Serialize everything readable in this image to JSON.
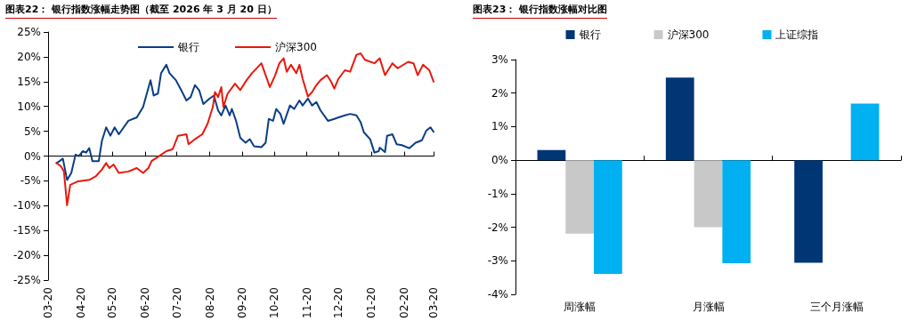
{
  "chart_data": [
    {
      "type": "line",
      "title": "图表22：  银行指数涨幅走势图（截至 2026 年 3 月 20 日）",
      "legend": "top",
      "marker": "none",
      "line_style": "solid",
      "xlim": [
        "2025-03-20",
        "2026-03-20"
      ],
      "xticks": [
        {
          "value": "2025-03-20",
          "label": "03-20"
        },
        {
          "value": "2025-04-20",
          "label": "04-20"
        },
        {
          "value": "2025-05-20",
          "label": "05-20"
        },
        {
          "value": "2025-06-20",
          "label": "06-20"
        },
        {
          "value": "2025-07-20",
          "label": "07-20"
        },
        {
          "value": "2025-08-20",
          "label": "08-20"
        },
        {
          "value": "2025-09-20",
          "label": "09-20"
        },
        {
          "value": "2025-10-20",
          "label": "10-20"
        },
        {
          "value": "2025-11-20",
          "label": "11-20"
        },
        {
          "value": "2025-12-20",
          "label": "12-20"
        },
        {
          "value": "2026-01-20",
          "label": "01-20"
        },
        {
          "value": "2026-02-20",
          "label": "02-20"
        },
        {
          "value": "2026-03-20",
          "label": "03-20"
        }
      ],
      "ylim": [
        -25,
        25
      ],
      "yticks": [
        {
          "value": -25,
          "label": "-25%"
        },
        {
          "value": -20,
          "label": "-20%"
        },
        {
          "value": -15,
          "label": "-15%"
        },
        {
          "value": -10,
          "label": "-10%"
        },
        {
          "value": -5,
          "label": "-5%"
        },
        {
          "value": 0,
          "label": "0%"
        },
        {
          "value": 5,
          "label": "5%"
        },
        {
          "value": 10,
          "label": "10%"
        },
        {
          "value": 15,
          "label": "15%"
        },
        {
          "value": 20,
          "label": "20%"
        },
        {
          "value": 25,
          "label": "25%"
        }
      ],
      "series": [
        {
          "name": "银行",
          "color": "#0a3d85",
          "x": [
            "2025-03-28",
            "2025-03-31",
            "2025-04-03",
            "2025-04-07",
            "2025-04-11",
            "2025-04-15",
            "2025-04-18",
            "2025-04-22",
            "2025-04-25",
            "2025-04-28",
            "2025-05-01",
            "2025-05-07",
            "2025-05-10",
            "2025-05-14",
            "2025-05-18",
            "2025-05-22",
            "2025-05-26",
            "2025-06-04",
            "2025-06-12",
            "2025-06-18",
            "2025-06-25",
            "2025-06-28",
            "2025-07-02",
            "2025-07-05",
            "2025-07-10",
            "2025-07-13",
            "2025-07-19",
            "2025-07-24",
            "2025-07-29",
            "2025-08-02",
            "2025-08-06",
            "2025-08-10",
            "2025-08-14",
            "2025-08-20",
            "2025-08-24",
            "2025-08-28",
            "2025-08-31",
            "2025-09-04",
            "2025-09-08",
            "2025-09-10",
            "2025-09-14",
            "2025-09-18",
            "2025-09-23",
            "2025-09-27",
            "2025-10-01",
            "2025-10-08",
            "2025-10-12",
            "2025-10-15",
            "2025-10-19",
            "2025-10-22",
            "2025-10-26",
            "2025-10-29",
            "2025-11-04",
            "2025-11-08",
            "2025-11-13",
            "2025-11-16",
            "2025-11-21",
            "2025-11-25",
            "2025-11-29",
            "2025-12-03",
            "2025-12-10",
            "2025-12-16",
            "2025-12-20",
            "2025-12-26",
            "2025-12-31",
            "2026-01-06",
            "2026-01-10",
            "2026-01-13",
            "2026-01-19",
            "2026-01-23",
            "2026-01-27",
            "2026-01-28",
            "2026-02-02",
            "2026-02-04",
            "2026-02-09",
            "2026-02-13",
            "2026-02-18",
            "2026-02-25",
            "2026-03-03",
            "2026-03-09",
            "2026-03-13",
            "2026-03-17",
            "2026-03-20"
          ],
          "values": [
            -1.4,
            -1.0,
            -0.5,
            -4.8,
            -3.4,
            0.3,
            0,
            1.0,
            0.7,
            1.6,
            -1.0,
            -1.0,
            3.1,
            5.8,
            4.1,
            5.8,
            4.4,
            7.1,
            7.8,
            9.9,
            15.3,
            12.2,
            12.6,
            16.7,
            18.4,
            16.7,
            15.3,
            13.3,
            11.2,
            11.9,
            14.3,
            13.3,
            10.5,
            11.6,
            12.2,
            9.2,
            8.2,
            10.2,
            8.2,
            9.5,
            7.1,
            3.7,
            2.7,
            3.4,
            2.0,
            1.8,
            2.7,
            7.5,
            7.1,
            9.5,
            8.5,
            6.5,
            10.2,
            9.5,
            11.2,
            10.2,
            11.6,
            10.2,
            10.9,
            9.2,
            7.1,
            7.5,
            7.8,
            8.2,
            8.5,
            8.2,
            6.8,
            4.8,
            3.4,
            0.7,
            1.0,
            1.7,
            0.8,
            4.1,
            4.4,
            2.4,
            2.2,
            1.6,
            2.7,
            3.2,
            5.1,
            5.8,
            4.9
          ]
        },
        {
          "name": "沪深300",
          "color": "#e8180c",
          "x": [
            "2025-03-28",
            "2025-04-01",
            "2025-04-04",
            "2025-04-07",
            "2025-04-10",
            "2025-04-17",
            "2025-04-28",
            "2025-05-04",
            "2025-05-10",
            "2025-05-14",
            "2025-05-17",
            "2025-05-21",
            "2025-05-26",
            "2025-06-04",
            "2025-06-12",
            "2025-06-18",
            "2025-06-23",
            "2025-06-26",
            "2025-07-03",
            "2025-07-10",
            "2025-07-16",
            "2025-07-21",
            "2025-07-29",
            "2025-07-31",
            "2025-08-06",
            "2025-08-13",
            "2025-08-18",
            "2025-08-23",
            "2025-08-25",
            "2025-08-28",
            "2025-08-31",
            "2025-09-02",
            "2025-09-06",
            "2025-09-13",
            "2025-09-18",
            "2025-09-24",
            "2025-09-29",
            "2025-10-08",
            "2025-10-12",
            "2025-10-16",
            "2025-10-21",
            "2025-10-25",
            "2025-10-29",
            "2025-11-01",
            "2025-11-05",
            "2025-11-10",
            "2025-11-13",
            "2025-11-16",
            "2025-11-21",
            "2025-11-25",
            "2025-11-29",
            "2025-12-03",
            "2025-12-09",
            "2025-12-13",
            "2025-12-16",
            "2025-12-20",
            "2025-12-26",
            "2025-12-31",
            "2026-01-06",
            "2026-01-10",
            "2026-01-14",
            "2026-01-23",
            "2026-01-28",
            "2026-02-02",
            "2026-02-09",
            "2026-02-14",
            "2026-02-24",
            "2026-03-01",
            "2026-03-05",
            "2026-03-10",
            "2026-03-16",
            "2026-03-20"
          ],
          "values": [
            -1.4,
            -2.0,
            -3.1,
            -9.9,
            -5.8,
            -5.1,
            -4.8,
            -4.1,
            -2.7,
            -1.4,
            -2.4,
            -1.7,
            -3.4,
            -3.1,
            -2.4,
            -3.4,
            -2.4,
            -1.0,
            0,
            1.0,
            1.4,
            4.1,
            4.4,
            2.4,
            3.4,
            4.4,
            6.5,
            9.9,
            12.9,
            11.9,
            13.9,
            9.9,
            12.6,
            14.6,
            13.3,
            15.3,
            16.7,
            18.7,
            16.3,
            13.9,
            16.3,
            18.7,
            19.7,
            17.0,
            18.4,
            16.7,
            18.4,
            15.6,
            12.0,
            12.9,
            14.3,
            15.3,
            16.3,
            15.0,
            13.6,
            15.6,
            17.3,
            17.0,
            20.4,
            20.7,
            19.4,
            18.7,
            19.7,
            16.3,
            18.7,
            17.7,
            19.0,
            18.7,
            16.3,
            18.4,
            17.3,
            15.0
          ]
        }
      ]
    },
    {
      "type": "bar",
      "title": "图表23：  银行指数涨幅对比图",
      "legend": "top",
      "categories": [
        "周涨幅",
        "月涨幅",
        "三个月涨幅"
      ],
      "ylim": [
        -4,
        3
      ],
      "yticks": [
        {
          "value": -4,
          "label": "-4%"
        },
        {
          "value": -3,
          "label": "-3%"
        },
        {
          "value": -2,
          "label": "-2%"
        },
        {
          "value": -1,
          "label": "-1%"
        },
        {
          "value": 0,
          "label": "0%"
        },
        {
          "value": 1,
          "label": "1%"
        },
        {
          "value": 2,
          "label": "2%"
        },
        {
          "value": 3,
          "label": "3%"
        }
      ],
      "series": [
        {
          "name": "银行",
          "color": "#003673",
          "values": [
            0.3,
            2.46,
            -3.06
          ]
        },
        {
          "name": "沪深300",
          "color": "#c8c8c8",
          "values": [
            -2.19,
            -2.0,
            0
          ]
        },
        {
          "name": "上证综指",
          "color": "#00b0f0",
          "values": [
            -3.39,
            -3.07,
            1.69
          ]
        }
      ]
    }
  ]
}
